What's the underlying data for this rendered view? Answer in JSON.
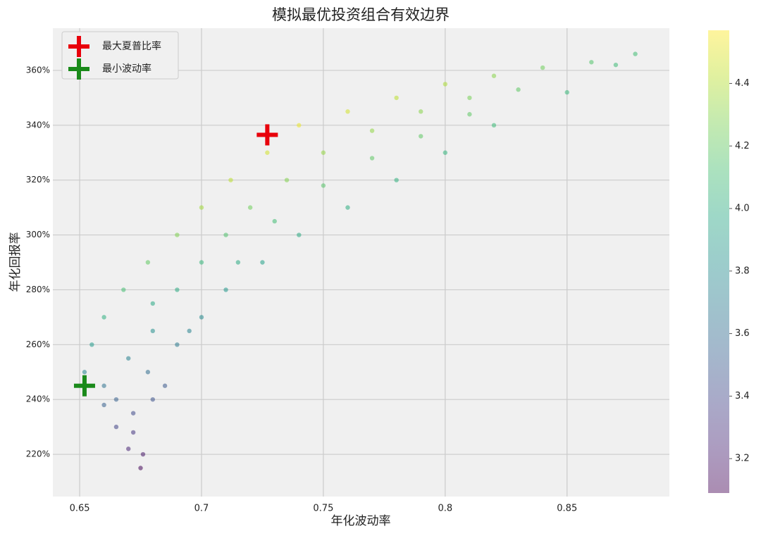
{
  "chart_data": {
    "type": "scatter",
    "title": "模拟最优投资组合有效边界",
    "xlabel": "年化波动率",
    "ylabel": "年化回报率",
    "xlim": [
      0.639,
      0.892
    ],
    "xticks": [
      0.65,
      0.7,
      0.75,
      0.8,
      0.85
    ],
    "ylim": [
      204.6,
      375.4
    ],
    "yticks": [
      {
        "value": 220,
        "label": "220%"
      },
      {
        "value": 240,
        "label": "240%"
      },
      {
        "value": 260,
        "label": "260%"
      },
      {
        "value": 280,
        "label": "280%"
      },
      {
        "value": 300,
        "label": "300%"
      },
      {
        "value": 320,
        "label": "320%"
      },
      {
        "value": 340,
        "label": "340%"
      },
      {
        "value": 360,
        "label": "360%"
      }
    ],
    "clim": [
      3.09,
      4.57
    ],
    "cticks": [
      3.2,
      3.4,
      3.6,
      3.8,
      4.0,
      4.2,
      4.4
    ],
    "colormap": "viridis",
    "grid": true,
    "legend": "upper left",
    "x": [
      0.652,
      0.655,
      0.66,
      0.668,
      0.678,
      0.69,
      0.7,
      0.712,
      0.727,
      0.74,
      0.76,
      0.78,
      0.8,
      0.82,
      0.84,
      0.86,
      0.878,
      0.675,
      0.67,
      0.665,
      0.66,
      0.672,
      0.68,
      0.678,
      0.69,
      0.7,
      0.71,
      0.725,
      0.74,
      0.76,
      0.78,
      0.8,
      0.82,
      0.85,
      0.87,
      0.67,
      0.68,
      0.69,
      0.7,
      0.71,
      0.72,
      0.735,
      0.75,
      0.77,
      0.79,
      0.81,
      0.83,
      0.73,
      0.75,
      0.77,
      0.79,
      0.81,
      0.66,
      0.685,
      0.695,
      0.715,
      0.68,
      0.672,
      0.676,
      0.665
    ],
    "y": [
      250,
      260,
      270,
      280,
      290,
      300,
      310,
      320,
      330,
      340,
      345,
      350,
      355,
      358,
      361,
      363,
      366,
      215,
      222,
      230,
      238,
      235,
      240,
      250,
      260,
      270,
      280,
      290,
      300,
      310,
      320,
      330,
      340,
      352,
      362,
      255,
      265,
      280,
      290,
      300,
      310,
      320,
      330,
      338,
      345,
      350,
      353,
      305,
      318,
      328,
      336,
      344,
      245,
      245,
      265,
      290,
      275,
      228,
      220,
      240
    ],
    "c": [
      3.76,
      3.89,
      4.02,
      4.12,
      4.2,
      4.28,
      4.36,
      4.42,
      4.47,
      4.53,
      4.47,
      4.42,
      4.38,
      4.3,
      4.24,
      4.16,
      4.11,
      3.11,
      3.24,
      3.38,
      3.53,
      3.42,
      3.46,
      3.61,
      3.7,
      3.79,
      3.87,
      3.93,
      3.99,
      4.01,
      4.04,
      4.06,
      4.09,
      4.08,
      4.1,
      3.73,
      3.82,
      3.99,
      4.07,
      4.15,
      4.24,
      4.29,
      4.33,
      4.32,
      4.3,
      4.26,
      4.19,
      4.11,
      4.17,
      4.19,
      4.19,
      4.19,
      3.64,
      3.5,
      3.74,
      3.99,
      3.97,
      3.32,
      3.18,
      3.53
    ],
    "markers": [
      {
        "name": "最大夏普比率",
        "color": "#e8000b",
        "x": 0.727,
        "y": 336.5
      },
      {
        "name": "最小波动率",
        "color": "#1a8a1a",
        "x": 0.652,
        "y": 245
      }
    ]
  }
}
